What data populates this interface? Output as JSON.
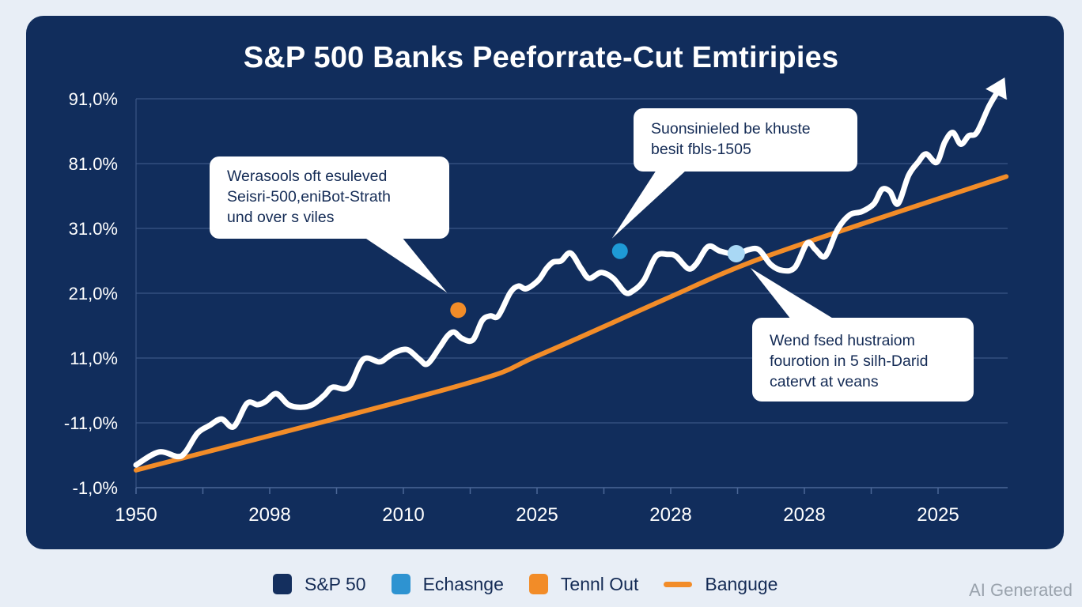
{
  "chart_data": {
    "type": "line",
    "title": "S&P 500 Banks Peeforrate-Cut Emtiripies",
    "xlabel": "",
    "ylabel": "",
    "y_tick_labels": [
      "-1,0%",
      "-11,0%",
      "11,0%",
      "21,0%",
      "31.0%",
      "81.0%",
      "91,0%"
    ],
    "x_tick_labels": [
      "1950",
      "2098",
      "2010",
      "2025",
      "2028",
      "2028",
      "2025"
    ],
    "axis_units_note": "x values are positions in x-tick-label index units (0 = first label); y values in y-tick-label index units (0 = '-1,0%')",
    "xlim": [
      0,
      6.5
    ],
    "ylim": [
      0,
      6
    ],
    "grid": true,
    "series": [
      {
        "name": "S&P 50",
        "color": "#ffffff",
        "style": "line-with-arrow",
        "points": [
          [
            0.0,
            0.35
          ],
          [
            0.17,
            0.55
          ],
          [
            0.31,
            0.48
          ],
          [
            0.37,
            0.55
          ],
          [
            0.46,
            0.84
          ],
          [
            0.55,
            0.96
          ],
          [
            0.64,
            1.06
          ],
          [
            0.73,
            0.94
          ],
          [
            0.83,
            1.3
          ],
          [
            0.91,
            1.28
          ],
          [
            0.97,
            1.33
          ],
          [
            1.05,
            1.45
          ],
          [
            1.14,
            1.28
          ],
          [
            1.23,
            1.24
          ],
          [
            1.32,
            1.28
          ],
          [
            1.41,
            1.43
          ],
          [
            1.47,
            1.55
          ],
          [
            1.59,
            1.55
          ],
          [
            1.7,
            1.98
          ],
          [
            1.82,
            1.94
          ],
          [
            1.88,
            2.01
          ],
          [
            1.94,
            2.09
          ],
          [
            2.03,
            2.13
          ],
          [
            2.12,
            1.98
          ],
          [
            2.18,
            1.91
          ],
          [
            2.27,
            2.16
          ],
          [
            2.33,
            2.34
          ],
          [
            2.38,
            2.4
          ],
          [
            2.44,
            2.3
          ],
          [
            2.52,
            2.28
          ],
          [
            2.59,
            2.58
          ],
          [
            2.65,
            2.65
          ],
          [
            2.71,
            2.65
          ],
          [
            2.8,
            3.01
          ],
          [
            2.86,
            3.11
          ],
          [
            2.92,
            3.07
          ],
          [
            3.01,
            3.2
          ],
          [
            3.07,
            3.38
          ],
          [
            3.12,
            3.48
          ],
          [
            3.18,
            3.5
          ],
          [
            3.25,
            3.62
          ],
          [
            3.33,
            3.38
          ],
          [
            3.39,
            3.23
          ],
          [
            3.48,
            3.32
          ],
          [
            3.57,
            3.23
          ],
          [
            3.66,
            3.01
          ],
          [
            3.72,
            3.04
          ],
          [
            3.8,
            3.2
          ],
          [
            3.89,
            3.57
          ],
          [
            3.98,
            3.6
          ],
          [
            4.04,
            3.57
          ],
          [
            4.13,
            3.38
          ],
          [
            4.19,
            3.45
          ],
          [
            4.28,
            3.72
          ],
          [
            4.37,
            3.65
          ],
          [
            4.49,
            3.6
          ],
          [
            4.58,
            3.67
          ],
          [
            4.66,
            3.67
          ],
          [
            4.75,
            3.44
          ],
          [
            4.84,
            3.35
          ],
          [
            4.93,
            3.4
          ],
          [
            5.02,
            3.77
          ],
          [
            5.08,
            3.68
          ],
          [
            5.14,
            3.56
          ],
          [
            5.18,
            3.65
          ],
          [
            5.25,
            3.99
          ],
          [
            5.34,
            4.21
          ],
          [
            5.43,
            4.26
          ],
          [
            5.52,
            4.38
          ],
          [
            5.58,
            4.6
          ],
          [
            5.64,
            4.57
          ],
          [
            5.7,
            4.38
          ],
          [
            5.78,
            4.82
          ],
          [
            5.85,
            5.02
          ],
          [
            5.91,
            5.15
          ],
          [
            5.99,
            5.02
          ],
          [
            6.05,
            5.33
          ],
          [
            6.11,
            5.48
          ],
          [
            6.17,
            5.3
          ],
          [
            6.23,
            5.43
          ],
          [
            6.29,
            5.48
          ],
          [
            6.38,
            5.88
          ],
          [
            6.44,
            6.09
          ]
        ]
      },
      {
        "name": "Banguge",
        "color": "#f28c28",
        "style": "line",
        "points": [
          [
            0.0,
            0.27
          ],
          [
            2.41,
            1.57
          ],
          [
            3.01,
            2.04
          ],
          [
            3.96,
            2.91
          ],
          [
            4.6,
            3.48
          ],
          [
            5.49,
            4.11
          ],
          [
            6.51,
            4.8
          ]
        ]
      }
    ],
    "markers": [
      {
        "name": "Tennl Out",
        "color": "#f28c28",
        "x": 2.41,
        "y": 2.74
      },
      {
        "name": "Echasnge",
        "color": "#1e9ad6",
        "x": 3.62,
        "y": 3.65
      },
      {
        "name": "Echasnge-highlight",
        "color": "#a9d8f5",
        "x": 4.49,
        "y": 3.61
      }
    ],
    "annotations": [
      {
        "lines": [
          "Werasools oft esuleved",
          "Seisri-500,eniBot-Strath",
          "und over s viles"
        ],
        "points_to": "Tennl Out marker"
      },
      {
        "lines": [
          "Suonsinieled be khuste",
          "besit fbls-1505"
        ],
        "points_to": "Echasnge marker"
      },
      {
        "lines": [
          "Wend fsed hustraiom",
          "fourotion in 5 silh-Darid",
          "catervt at veans"
        ],
        "points_to": "Echasnge-highlight marker"
      }
    ],
    "legend": {
      "position": "bottom-center",
      "entries": [
        {
          "label": "S&P 50",
          "color": "#142f5e",
          "shape": "square"
        },
        {
          "label": "Echasnge",
          "color": "#2e93d1",
          "shape": "square"
        },
        {
          "label": "Tennl Out",
          "color": "#f28c28",
          "shape": "square"
        },
        {
          "label": "Banguge",
          "color": "#f28c28",
          "shape": "line"
        }
      ]
    }
  },
  "colors": {
    "page_background": "#e8eef6",
    "panel_background": "#112d5c",
    "gridline": "#3a5585",
    "text_dark": "#142b55"
  },
  "watermark": "AI Generated"
}
